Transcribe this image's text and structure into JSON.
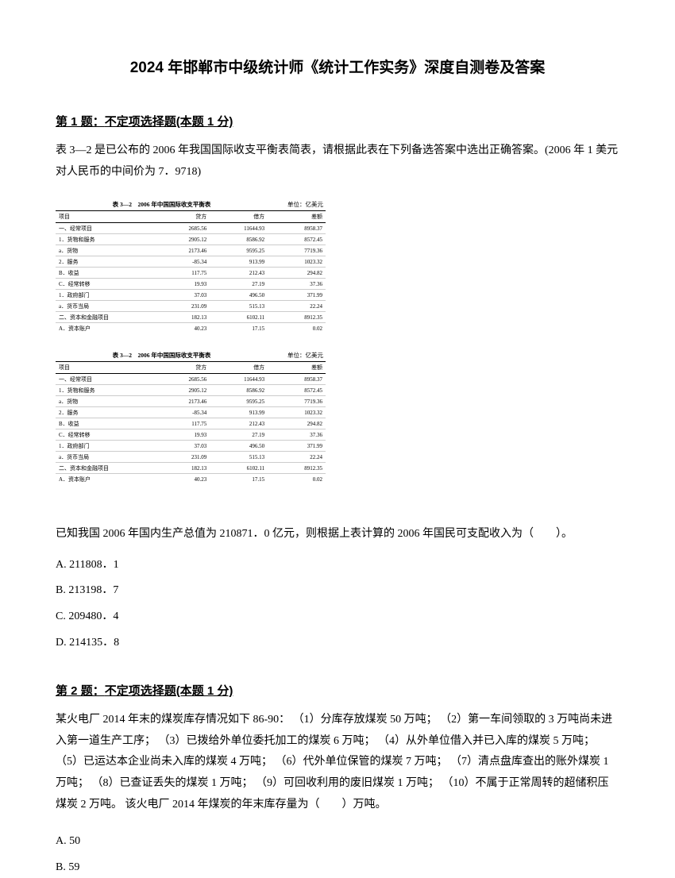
{
  "title": "2024 年邯郸市中级统计师《统计工作实务》深度自测卷及答案",
  "q1": {
    "header_prefix": "第 1 题：",
    "header_type": "不定项选择题(本题 1 分)",
    "body": "表 3—2 是已公布的 2006 年我国国际收支平衡表简表，请根据此表在下列备选答案中选出正确答案。(2006 年 1 美元对人民币的中间价为 7．9718)",
    "table": {
      "title": "表 3—2　2006 年中国国际收支平衡表",
      "unit": "单位：亿美元",
      "headers": [
        "项目",
        "贷方",
        "借方",
        "差额"
      ],
      "rows": [
        [
          "一、经常项目",
          "2685.56",
          "11644.93",
          "8958.37"
        ],
        [
          "1．货物和服务",
          "2905.12",
          "8586.92",
          "8572.45"
        ],
        [
          "a．货物",
          "2173.46",
          "9595.25",
          "7719.36"
        ],
        [
          "2．服务",
          "-85.34",
          "913.99",
          "1023.32"
        ],
        [
          "B．收益",
          "117.75",
          "212.43",
          "294.82"
        ],
        [
          "C．经常转移",
          "19.93",
          "27.19",
          "37.36"
        ],
        [
          "1．政府部门",
          "37.03",
          "496.50",
          "371.99"
        ],
        [
          "a．货币当局",
          "231.09",
          "515.13",
          "22.24"
        ],
        [
          "二、资本和金融项目",
          "182.13",
          "6102.11",
          "8912.35"
        ],
        [
          "A．资本账户",
          "40.23",
          "17.15",
          "0.02"
        ]
      ]
    },
    "prompt": "已知我国 2006 年国内生产总值为 210871．0 亿元，则根据上表计算的 2006 年国民可支配收入为（　　）。",
    "options": [
      "A. 211808．1",
      "B. 213198．7",
      "C. 209480．4",
      "D. 214135．8"
    ]
  },
  "q2": {
    "header_prefix": "第 2 题：",
    "header_type": "不定项选择题(本题 1 分)",
    "body": "某火电厂 2014 年末的煤炭库存情况如下 86-90： （1）分库存放煤炭 50 万吨； （2）第一车间领取的 3 万吨尚未进入第一道生产工序； （3）已拨给外单位委托加工的煤炭 6 万吨； （4）从外单位借入并已入库的煤炭 5 万吨； （5）已运达本企业尚未入库的煤炭 4 万吨； （6）代外单位保管的煤炭 7 万吨； （7）清点盘库查出的账外煤炭 1 万吨； （8）已查证丢失的煤炭 1 万吨； （9）可回收利用的废旧煤炭 1 万吨； （10）不属于正常周转的超储积压煤炭 2 万吨。 该火电厂 2014 年煤炭的年末库存量为（　　）万吨。",
    "options": [
      "A. 50",
      "B. 59"
    ]
  }
}
